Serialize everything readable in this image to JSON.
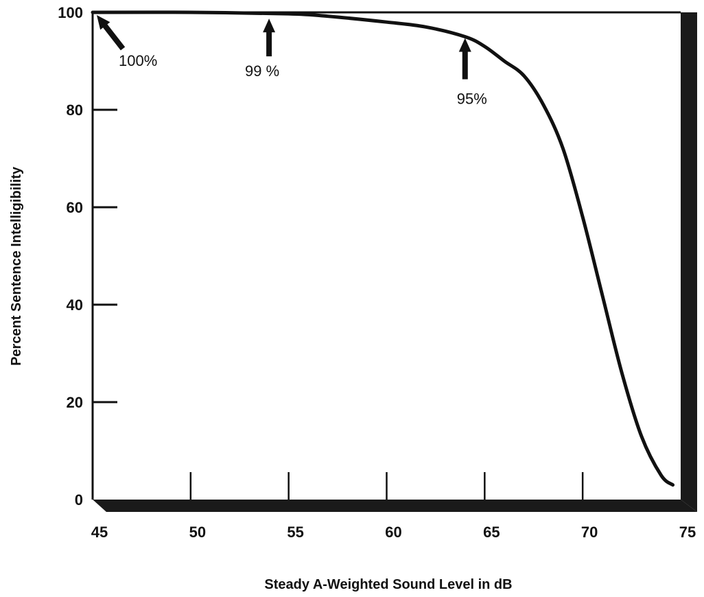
{
  "chart_data": {
    "type": "line",
    "xlabel": "Steady A-Weighted Sound Level in dB",
    "ylabel": "Percent Sentence Intelligibility",
    "xlim": [
      45,
      75
    ],
    "ylim": [
      0,
      100
    ],
    "x_ticks": [
      "45",
      "50",
      "55",
      "60",
      "65",
      "70",
      "75"
    ],
    "y_ticks": [
      "0",
      "20",
      "40",
      "60",
      "80",
      "100"
    ],
    "grid": false,
    "series": [
      {
        "x": [
          45,
          50,
          55,
          57,
          60,
          62,
          64,
          65,
          66,
          67,
          68,
          69,
          70,
          71,
          72,
          73,
          74,
          74.6
        ],
        "y": [
          100,
          100,
          99.7,
          99.2,
          98,
          97,
          95,
          93,
          90,
          87,
          81,
          72,
          58,
          42,
          26,
          13,
          5,
          3
        ]
      }
    ],
    "annotations": [
      {
        "text": "100%",
        "x": 45,
        "y": 100
      },
      {
        "text": "99 %",
        "x": 54,
        "y": 99
      },
      {
        "text": "95%",
        "x": 64,
        "y": 95
      }
    ]
  }
}
